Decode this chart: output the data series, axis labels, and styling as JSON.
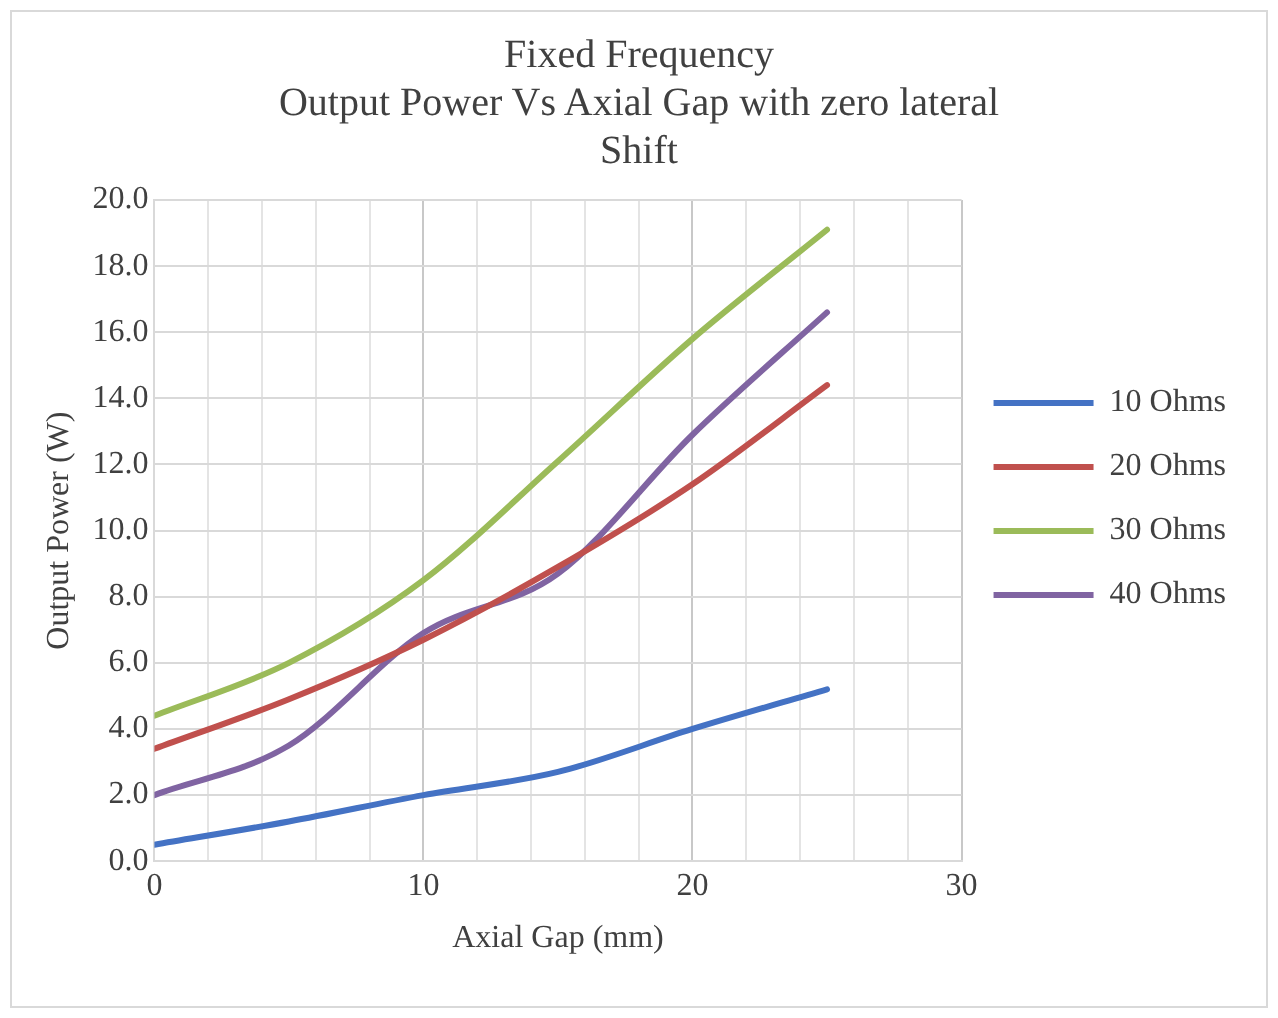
{
  "chart_data": {
    "type": "line",
    "title": [
      "Fixed Frequency",
      "Output Power Vs Axial Gap with zero lateral",
      "Shift"
    ],
    "xlabel": "Axial Gap (mm)",
    "ylabel": "Output Power (W)",
    "x": [
      0,
      5,
      10,
      15,
      20,
      25
    ],
    "series": [
      {
        "name": "10 Ohms",
        "color": "#4472c4",
        "values": [
          0.5,
          1.2,
          2.0,
          2.7,
          4.0,
          5.2
        ]
      },
      {
        "name": "20 Ohms",
        "color": "#c0504d",
        "values": [
          3.4,
          4.9,
          6.7,
          8.9,
          11.4,
          14.4
        ]
      },
      {
        "name": "30 Ohms",
        "color": "#9bbb59",
        "values": [
          4.4,
          6.0,
          8.5,
          12.1,
          15.8,
          19.1
        ]
      },
      {
        "name": "40 Ohms",
        "color": "#8064a2",
        "values": [
          2.0,
          3.5,
          6.9,
          8.7,
          12.9,
          16.6
        ]
      }
    ],
    "xlim": [
      0,
      30
    ],
    "xticks": [
      0,
      {
        "value": 2,
        "label": null
      },
      {
        "value": 4,
        "label": null
      },
      {
        "value": 6,
        "label": null
      },
      {
        "value": 8,
        "label": null
      },
      10,
      {
        "value": 12,
        "label": null
      },
      {
        "value": 14,
        "label": null
      },
      {
        "value": 16,
        "label": null
      },
      {
        "value": 18,
        "label": null
      },
      20,
      {
        "value": 22,
        "label": null
      },
      {
        "value": 24,
        "label": null
      },
      {
        "value": 26,
        "label": null
      },
      {
        "value": 28,
        "label": null
      },
      30
    ],
    "ylim": [
      0,
      20
    ],
    "yticks": [
      {
        "value": 0,
        "label": "0.0"
      },
      {
        "value": 2,
        "label": "2.0"
      },
      {
        "value": 4,
        "label": "4.0"
      },
      {
        "value": 6,
        "label": "6.0"
      },
      {
        "value": 8,
        "label": "8.0"
      },
      {
        "value": 10,
        "label": "10.0"
      },
      {
        "value": 12,
        "label": "12.0"
      },
      {
        "value": 14,
        "label": "14.0"
      },
      {
        "value": 16,
        "label": "16.0"
      },
      {
        "value": 18,
        "label": "18.0"
      },
      {
        "value": 20,
        "label": "20.0"
      }
    ],
    "grid": true,
    "legend": "right",
    "marker": "none",
    "line_style": "solid"
  }
}
